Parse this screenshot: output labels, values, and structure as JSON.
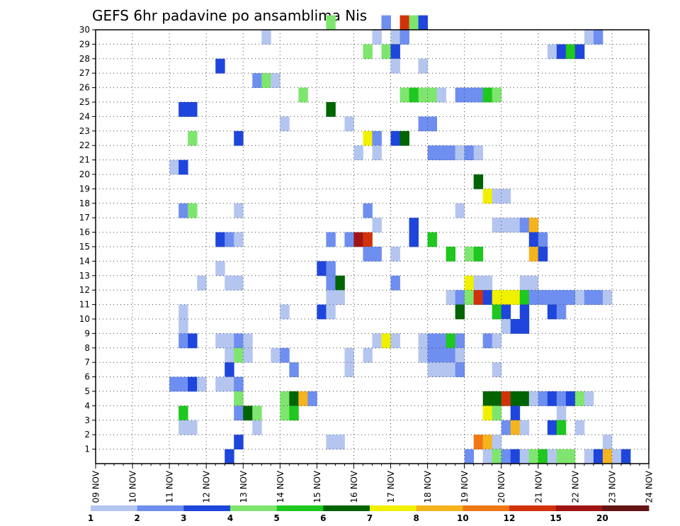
{
  "chart_data": {
    "type": "heatmap",
    "title": "GEFS 6hr padavine po ansamblima Nis",
    "x_labels": [
      "09 NOV",
      "10 NOV",
      "11 NOV",
      "12 NOV",
      "13 NOV",
      "14 NOV",
      "15 NOV",
      "16 NOV",
      "17 NOV",
      "18 NOV",
      "19 NOV",
      "20 NOV",
      "21 NOV",
      "22 NOV",
      "23 NOV",
      "24 NOV"
    ],
    "y_labels": [
      "1",
      "2",
      "3",
      "4",
      "5",
      "6",
      "7",
      "8",
      "9",
      "10",
      "11",
      "12",
      "13",
      "14",
      "15",
      "16",
      "17",
      "18",
      "19",
      "20",
      "21",
      "22",
      "23",
      "24",
      "25",
      "26",
      "27",
      "28",
      "29",
      "30"
    ],
    "ylim": [
      0,
      30
    ],
    "grid": true,
    "legend": {
      "position": "bottom",
      "labels": [
        "1",
        "2",
        "3",
        "4",
        "5",
        "6",
        "7",
        "8",
        "10",
        "12",
        "15",
        "20"
      ],
      "colors": [
        "#b4c6f0",
        "#6e8ef0",
        "#1e46dc",
        "#7ee66e",
        "#1ec81e",
        "#006400",
        "#f0f000",
        "#f5b41e",
        "#f07814",
        "#d2320a",
        "#a01414",
        "#641414"
      ]
    },
    "cells": [
      [
        15.25,
        30,
        3
      ],
      [
        16.75,
        30,
        1
      ],
      [
        17.25,
        30,
        9
      ],
      [
        17.5,
        30,
        3
      ],
      [
        17.75,
        30,
        2
      ],
      [
        13.5,
        29,
        0
      ],
      [
        16.5,
        29,
        0
      ],
      [
        17,
        29,
        0
      ],
      [
        17.25,
        29,
        1
      ],
      [
        22.25,
        29,
        0
      ],
      [
        22.5,
        29,
        1
      ],
      [
        16.25,
        28,
        3
      ],
      [
        16.75,
        28,
        3
      ],
      [
        17,
        28,
        2
      ],
      [
        21.25,
        28,
        0
      ],
      [
        21.5,
        28,
        2
      ],
      [
        21.75,
        28,
        4
      ],
      [
        22,
        28,
        2
      ],
      [
        12.25,
        27,
        2
      ],
      [
        17,
        27,
        0
      ],
      [
        17.75,
        27,
        0
      ],
      [
        13.25,
        26,
        1
      ],
      [
        13.5,
        26,
        3
      ],
      [
        13.75,
        26,
        0
      ],
      [
        14.5,
        25,
        3
      ],
      [
        17.25,
        25,
        3
      ],
      [
        17.5,
        25,
        4
      ],
      [
        17.75,
        25,
        3
      ],
      [
        18,
        25,
        3
      ],
      [
        18.25,
        25,
        0
      ],
      [
        18.75,
        25,
        1
      ],
      [
        19,
        25,
        1
      ],
      [
        19.25,
        25,
        1
      ],
      [
        19.5,
        25,
        4
      ],
      [
        19.75,
        25,
        3
      ],
      [
        11.25,
        24,
        2
      ],
      [
        11.5,
        24,
        2
      ],
      [
        15.25,
        24,
        5
      ],
      [
        14,
        23,
        0
      ],
      [
        15.75,
        23,
        0
      ],
      [
        17.75,
        23,
        1
      ],
      [
        18,
        23,
        1
      ],
      [
        11.5,
        22,
        3
      ],
      [
        12.75,
        22,
        2
      ],
      [
        16.25,
        22,
        6
      ],
      [
        16.5,
        22,
        1
      ],
      [
        17,
        22,
        2
      ],
      [
        17.25,
        22,
        5
      ],
      [
        16,
        21,
        0
      ],
      [
        16.5,
        21,
        0
      ],
      [
        18,
        21,
        1
      ],
      [
        18.25,
        21,
        1
      ],
      [
        18.5,
        21,
        1
      ],
      [
        18.75,
        21,
        0
      ],
      [
        19,
        21,
        1
      ],
      [
        19.25,
        21,
        0
      ],
      [
        11,
        20,
        0
      ],
      [
        11.25,
        20,
        2
      ],
      [
        19.25,
        19,
        5
      ],
      [
        19.5,
        18,
        6
      ],
      [
        19.75,
        18,
        0
      ],
      [
        20,
        18,
        0
      ],
      [
        11.25,
        17,
        1
      ],
      [
        11.5,
        17,
        3
      ],
      [
        12.75,
        17,
        0
      ],
      [
        16.25,
        17,
        1
      ],
      [
        18.75,
        17,
        0
      ],
      [
        16.5,
        16,
        0
      ],
      [
        17.5,
        16,
        2
      ],
      [
        19.75,
        16,
        0
      ],
      [
        20,
        16,
        0
      ],
      [
        20.25,
        16,
        0
      ],
      [
        20.5,
        16,
        1
      ],
      [
        20.75,
        16,
        7
      ],
      [
        12.25,
        15,
        2
      ],
      [
        12.5,
        15,
        1
      ],
      [
        12.75,
        15,
        0
      ],
      [
        15.25,
        15,
        1
      ],
      [
        15.75,
        15,
        1
      ],
      [
        16,
        15,
        10
      ],
      [
        16.25,
        15,
        9
      ],
      [
        17.5,
        15,
        2
      ],
      [
        18,
        15,
        4
      ],
      [
        20.75,
        15,
        2
      ],
      [
        21,
        15,
        1
      ],
      [
        16.25,
        14,
        1
      ],
      [
        16.5,
        14,
        1
      ],
      [
        17,
        14,
        0
      ],
      [
        18.5,
        14,
        4
      ],
      [
        19,
        14,
        3
      ],
      [
        19.25,
        14,
        4
      ],
      [
        20.75,
        14,
        7
      ],
      [
        21,
        14,
        2
      ],
      [
        12.25,
        13,
        0
      ],
      [
        15,
        13,
        2
      ],
      [
        15.25,
        13,
        1
      ],
      [
        11.75,
        12,
        0
      ],
      [
        12.5,
        12,
        0
      ],
      [
        12.75,
        12,
        0
      ],
      [
        15.25,
        12,
        1
      ],
      [
        15.5,
        12,
        5
      ],
      [
        17,
        12,
        1
      ],
      [
        19,
        12,
        6
      ],
      [
        19.25,
        12,
        0
      ],
      [
        19.5,
        12,
        0
      ],
      [
        20.5,
        12,
        0
      ],
      [
        20.75,
        12,
        0
      ],
      [
        15.25,
        11,
        0
      ],
      [
        15.5,
        11,
        0
      ],
      [
        18.5,
        11,
        0
      ],
      [
        18.75,
        11,
        1
      ],
      [
        19,
        11,
        3
      ],
      [
        19.25,
        11,
        9
      ],
      [
        19.5,
        11,
        2
      ],
      [
        19.75,
        11,
        6
      ],
      [
        20,
        11,
        6
      ],
      [
        20.25,
        11,
        6
      ],
      [
        20.5,
        11,
        4
      ],
      [
        20.75,
        11,
        1
      ],
      [
        21,
        11,
        1
      ],
      [
        21.25,
        11,
        1
      ],
      [
        21.5,
        11,
        1
      ],
      [
        21.75,
        11,
        1
      ],
      [
        22,
        11,
        0
      ],
      [
        22.25,
        11,
        1
      ],
      [
        22.5,
        11,
        1
      ],
      [
        22.75,
        11,
        0
      ],
      [
        11.25,
        10,
        0
      ],
      [
        14,
        10,
        0
      ],
      [
        15,
        10,
        2
      ],
      [
        15.25,
        10,
        0
      ],
      [
        18.75,
        10,
        5
      ],
      [
        19.75,
        10,
        4
      ],
      [
        20,
        10,
        2
      ],
      [
        20.5,
        10,
        2
      ],
      [
        21.25,
        10,
        2
      ],
      [
        21.5,
        10,
        1
      ],
      [
        11.25,
        9,
        0
      ],
      [
        20,
        9,
        0
      ],
      [
        20.25,
        9,
        2
      ],
      [
        20.5,
        9,
        2
      ],
      [
        11.25,
        8,
        1
      ],
      [
        11.5,
        8,
        2
      ],
      [
        12.25,
        8,
        0
      ],
      [
        12.5,
        8,
        0
      ],
      [
        12.75,
        8,
        1
      ],
      [
        13,
        8,
        0
      ],
      [
        16.5,
        8,
        0
      ],
      [
        16.75,
        8,
        6
      ],
      [
        17,
        8,
        0
      ],
      [
        17.75,
        8,
        0
      ],
      [
        18,
        8,
        1
      ],
      [
        18.25,
        8,
        1
      ],
      [
        18.5,
        8,
        4
      ],
      [
        18.75,
        8,
        1
      ],
      [
        19.5,
        8,
        1
      ],
      [
        19.75,
        8,
        0
      ],
      [
        12.5,
        7,
        0
      ],
      [
        12.75,
        7,
        3
      ],
      [
        13,
        7,
        0
      ],
      [
        13.75,
        7,
        0
      ],
      [
        14,
        7,
        1
      ],
      [
        15.75,
        7,
        0
      ],
      [
        16.25,
        7,
        0
      ],
      [
        17.75,
        7,
        0
      ],
      [
        18,
        7,
        1
      ],
      [
        18.25,
        7,
        1
      ],
      [
        18.5,
        7,
        1
      ],
      [
        18.75,
        7,
        0
      ],
      [
        12.5,
        6,
        2
      ],
      [
        14.25,
        6,
        1
      ],
      [
        15.75,
        6,
        0
      ],
      [
        18,
        6,
        0
      ],
      [
        18.25,
        6,
        0
      ],
      [
        18.5,
        6,
        0
      ],
      [
        18.75,
        6,
        1
      ],
      [
        19.75,
        6,
        0
      ],
      [
        11,
        5,
        1
      ],
      [
        11.25,
        5,
        1
      ],
      [
        11.5,
        5,
        2
      ],
      [
        11.75,
        5,
        0
      ],
      [
        12.25,
        5,
        0
      ],
      [
        12.5,
        5,
        0
      ],
      [
        12.75,
        5,
        1
      ],
      [
        12.75,
        4,
        3
      ],
      [
        14,
        4,
        3
      ],
      [
        14.25,
        4,
        5
      ],
      [
        14.5,
        4,
        7
      ],
      [
        14.75,
        4,
        1
      ],
      [
        19.5,
        4,
        5
      ],
      [
        19.75,
        4,
        5
      ],
      [
        20,
        4,
        9
      ],
      [
        20.25,
        4,
        5
      ],
      [
        20.5,
        4,
        5
      ],
      [
        20.75,
        4,
        0
      ],
      [
        21,
        4,
        1
      ],
      [
        21.25,
        4,
        2
      ],
      [
        21.5,
        4,
        1
      ],
      [
        21.75,
        4,
        2
      ],
      [
        22,
        4,
        3
      ],
      [
        22.25,
        4,
        0
      ],
      [
        11.25,
        3,
        4
      ],
      [
        12.75,
        3,
        1
      ],
      [
        13,
        3,
        5
      ],
      [
        13.25,
        3,
        3
      ],
      [
        14,
        3,
        3
      ],
      [
        14.25,
        3,
        4
      ],
      [
        19.5,
        3,
        6
      ],
      [
        19.75,
        3,
        3
      ],
      [
        20.25,
        3,
        2
      ],
      [
        21.5,
        3,
        0
      ],
      [
        11.25,
        2,
        0
      ],
      [
        11.5,
        2,
        0
      ],
      [
        13.25,
        2,
        0
      ],
      [
        20,
        2,
        1
      ],
      [
        20.25,
        2,
        7
      ],
      [
        20.5,
        2,
        0
      ],
      [
        21.25,
        2,
        2
      ],
      [
        21.5,
        2,
        4
      ],
      [
        22,
        2,
        0
      ],
      [
        12.75,
        1,
        2
      ],
      [
        15.25,
        1,
        0
      ],
      [
        15.5,
        1,
        0
      ],
      [
        19.25,
        1,
        8
      ],
      [
        19.5,
        1,
        7
      ],
      [
        19.75,
        1,
        0
      ],
      [
        22.75,
        1,
        0
      ],
      [
        12.5,
        0,
        2
      ],
      [
        19,
        0,
        1
      ],
      [
        19.5,
        0,
        0
      ],
      [
        19.75,
        0,
        3
      ],
      [
        20,
        0,
        1
      ],
      [
        20.25,
        0,
        2
      ],
      [
        20.5,
        0,
        0
      ],
      [
        20.75,
        0,
        3
      ],
      [
        21,
        0,
        4
      ],
      [
        21.25,
        0,
        0
      ],
      [
        21.5,
        0,
        3
      ],
      [
        21.75,
        0,
        3
      ],
      [
        22.25,
        0,
        0
      ],
      [
        22.5,
        0,
        2
      ],
      [
        22.75,
        0,
        7
      ],
      [
        23,
        0,
        0
      ],
      [
        23.25,
        0,
        2
      ]
    ]
  }
}
